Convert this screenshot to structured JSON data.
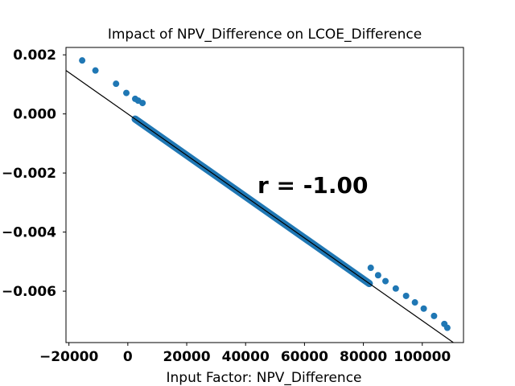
{
  "chart_data": {
    "type": "scatter",
    "title": "Impact of NPV_Difference on LCOE_Difference",
    "xlabel": "Input Factor: NPV_Difference",
    "ylabel": "",
    "xlim": [
      -21000,
      114000
    ],
    "ylim": [
      -0.00774,
      0.00225
    ],
    "x_ticks": [
      {
        "value": -20000,
        "label": "−20000"
      },
      {
        "value": 0,
        "label": "0"
      },
      {
        "value": 20000,
        "label": "20000"
      },
      {
        "value": 40000,
        "label": "40000"
      },
      {
        "value": 60000,
        "label": "60000"
      },
      {
        "value": 80000,
        "label": "80000"
      },
      {
        "value": 100000,
        "label": "100000"
      }
    ],
    "y_ticks": [
      {
        "value": 0.002,
        "label": "0.002"
      },
      {
        "value": 0.0,
        "label": "0.000"
      },
      {
        "value": -0.002,
        "label": "−0.002"
      },
      {
        "value": -0.004,
        "label": "−0.004"
      },
      {
        "value": -0.006,
        "label": "−0.006"
      }
    ],
    "annotation": "r = -1.00",
    "fit_line": {
      "slope": -7e-08,
      "intercept": 0.0
    },
    "scatter_points": {
      "x": [
        -15500,
        -11000,
        -4000,
        -500,
        2500,
        3500,
        5000,
        82500,
        85000,
        87500,
        91000,
        94500,
        97500,
        100500,
        104000,
        107500,
        108500
      ],
      "y": [
        0.00181,
        0.00147,
        0.00102,
        0.00071,
        0.00051,
        0.00045,
        0.00037,
        -0.00521,
        -0.00546,
        -0.00566,
        -0.00591,
        -0.00616,
        -0.00638,
        -0.00659,
        -0.00684,
        -0.00711,
        -0.00724
      ]
    },
    "dense_band": {
      "x_start": 2500,
      "x_end": 82000
    },
    "grid": false,
    "colors": {
      "points": "#1f77b4",
      "line": "#000000"
    }
  }
}
